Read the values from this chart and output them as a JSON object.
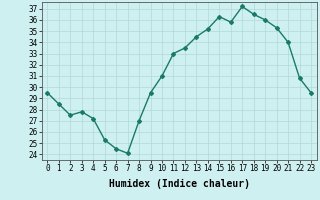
{
  "xlabel": "Humidex (Indice chaleur)",
  "x": [
    0,
    1,
    2,
    3,
    4,
    5,
    6,
    7,
    8,
    9,
    10,
    11,
    12,
    13,
    14,
    15,
    16,
    17,
    18,
    19,
    20,
    21,
    22,
    23
  ],
  "y": [
    29.5,
    28.5,
    27.5,
    27.8,
    27.2,
    25.3,
    24.5,
    24.1,
    27.0,
    29.5,
    31.0,
    33.0,
    33.5,
    34.5,
    35.2,
    36.3,
    35.8,
    37.2,
    36.5,
    36.0,
    35.3,
    34.0,
    30.8,
    29.5
  ],
  "line_color": "#1a7a6a",
  "marker": "D",
  "marker_size": 2.0,
  "bg_color": "#cff0f0",
  "grid_major_color": "#b0d8d8",
  "grid_minor_color": "#c8e8e8",
  "ylim": [
    23.5,
    37.6
  ],
  "yticks": [
    24,
    25,
    26,
    27,
    28,
    29,
    30,
    31,
    32,
    33,
    34,
    35,
    36,
    37
  ],
  "xticks": [
    0,
    1,
    2,
    3,
    4,
    5,
    6,
    7,
    8,
    9,
    10,
    11,
    12,
    13,
    14,
    15,
    16,
    17,
    18,
    19,
    20,
    21,
    22,
    23
  ],
  "xlabel_fontsize": 7,
  "tick_fontsize": 5.5,
  "line_width": 1.0
}
